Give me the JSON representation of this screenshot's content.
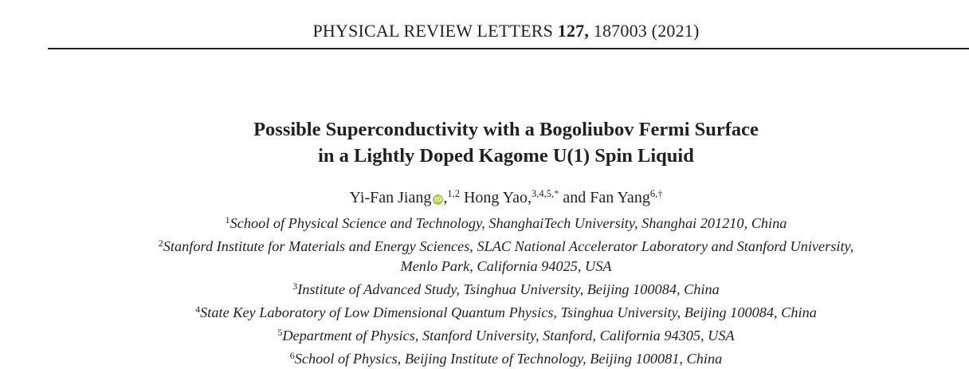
{
  "journal": {
    "name": "PHYSICAL REVIEW LETTERS",
    "volume": "127,",
    "article": "187003 (2021)"
  },
  "title": {
    "line1": "Possible Superconductivity with a Bogoliubov Fermi Surface",
    "line2": "in a Lightly Doped Kagome U(1) Spin Liquid"
  },
  "authors": [
    {
      "name": "Yi-Fan Jiang",
      "orcid": true,
      "affils": "1,2",
      "mark": ""
    },
    {
      "name": "Hong Yao,",
      "affils": "3,4,5,",
      "mark": "*"
    },
    {
      "name": "and Fan Yang",
      "affils": "6,",
      "mark": "†"
    }
  ],
  "orcid_icon": "iD",
  "affiliations": [
    {
      "num": "1",
      "text": "School of Physical Science and Technology, ShanghaiTech University, Shanghai 201210, China"
    },
    {
      "num": "2",
      "text": "Stanford Institute for Materials and Energy Sciences, SLAC National Accelerator Laboratory and Stanford University,",
      "cont": "Menlo Park, California 94025, USA"
    },
    {
      "num": "3",
      "text": "Institute of Advanced Study, Tsinghua University, Beijing 100084, China"
    },
    {
      "num": "4",
      "text": "State Key Laboratory of Low Dimensional Quantum Physics, Tsinghua University, Beijing 100084, China"
    },
    {
      "num": "5",
      "text": "Department of Physics, Stanford University, Stanford, California 94305, USA"
    },
    {
      "num": "6",
      "text": "School of Physics, Beijing Institute of Technology, Beijing 100081, China"
    }
  ],
  "colors": {
    "orcid": "#a6ce39",
    "link": "#3a3ab8"
  }
}
